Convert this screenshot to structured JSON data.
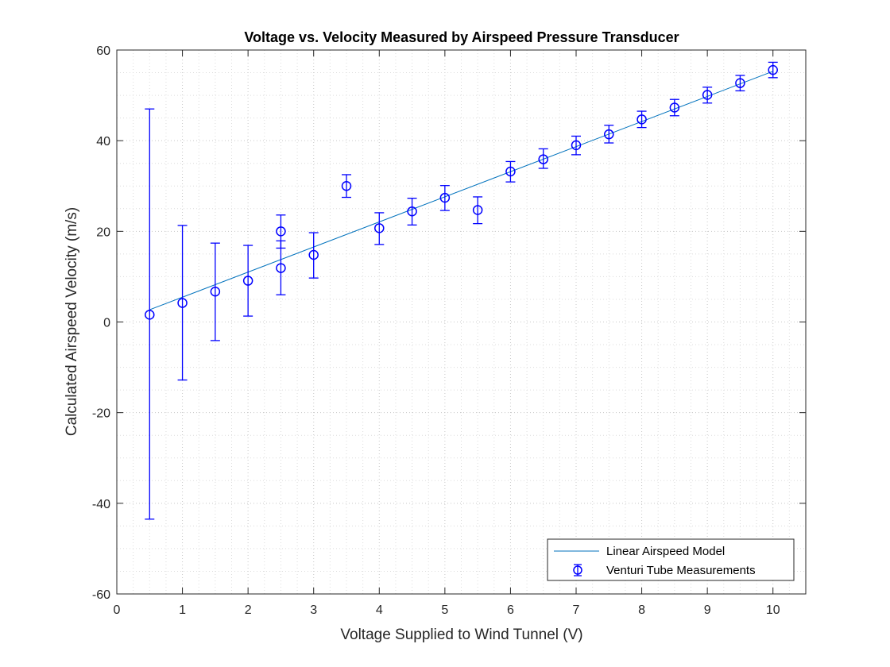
{
  "chart_data": {
    "type": "scatter",
    "title": "Voltage vs. Velocity Measured by Airspeed Pressure Transducer",
    "xlabel": "Voltage Supplied to Wind Tunnel (V)",
    "ylabel": "Calculated Airspeed Velocity (m/s)",
    "xlim": [
      0,
      10.5
    ],
    "ylim": [
      -60,
      60
    ],
    "xticks": [
      0,
      1,
      2,
      3,
      4,
      5,
      6,
      7,
      8,
      9,
      10
    ],
    "yticks": [
      -60,
      -40,
      -20,
      0,
      20,
      40,
      60
    ],
    "grid": "minor",
    "legend_position": "bottom-right",
    "colors": {
      "model": "#0072BD",
      "measurements": "#0000FF"
    },
    "series": [
      {
        "name": "Linear Airspeed Model",
        "type": "line",
        "x": [
          0.5,
          10
        ],
        "y": [
          2.7,
          55.3
        ]
      },
      {
        "name": "Venturi Tube Measurements",
        "type": "errorbar",
        "points": [
          {
            "x": 0.5,
            "y": 1.6,
            "low": -43.5,
            "high": 47.0
          },
          {
            "x": 1.0,
            "y": 4.2,
            "low": -12.8,
            "high": 21.3
          },
          {
            "x": 1.5,
            "y": 6.7,
            "low": -4.1,
            "high": 17.4
          },
          {
            "x": 2.0,
            "y": 9.1,
            "low": 1.3,
            "high": 16.9
          },
          {
            "x": 2.5,
            "y": 20.0,
            "low": 16.3,
            "high": 23.6
          },
          {
            "x": 2.5,
            "y": 11.9,
            "low": 6.0,
            "high": 17.9
          },
          {
            "x": 3.0,
            "y": 14.8,
            "low": 9.7,
            "high": 19.7
          },
          {
            "x": 3.5,
            "y": 30.0,
            "low": 27.5,
            "high": 32.5
          },
          {
            "x": 4.0,
            "y": 20.7,
            "low": 17.1,
            "high": 24.1
          },
          {
            "x": 4.5,
            "y": 24.4,
            "low": 21.4,
            "high": 27.3
          },
          {
            "x": 5.0,
            "y": 27.4,
            "low": 24.6,
            "high": 30.1
          },
          {
            "x": 5.5,
            "y": 24.7,
            "low": 21.7,
            "high": 27.6
          },
          {
            "x": 6.0,
            "y": 33.2,
            "low": 30.9,
            "high": 35.4
          },
          {
            "x": 6.5,
            "y": 35.9,
            "low": 33.9,
            "high": 38.2
          },
          {
            "x": 7.0,
            "y": 39.0,
            "low": 36.9,
            "high": 41.0
          },
          {
            "x": 7.5,
            "y": 41.4,
            "low": 39.5,
            "high": 43.4
          },
          {
            "x": 8.0,
            "y": 44.7,
            "low": 42.9,
            "high": 46.5
          },
          {
            "x": 8.5,
            "y": 47.3,
            "low": 45.5,
            "high": 49.1
          },
          {
            "x": 9.0,
            "y": 50.1,
            "low": 48.3,
            "high": 51.8
          },
          {
            "x": 9.5,
            "y": 52.7,
            "low": 51.0,
            "high": 54.4
          },
          {
            "x": 10.0,
            "y": 55.6,
            "low": 53.9,
            "high": 57.3
          }
        ]
      }
    ]
  }
}
